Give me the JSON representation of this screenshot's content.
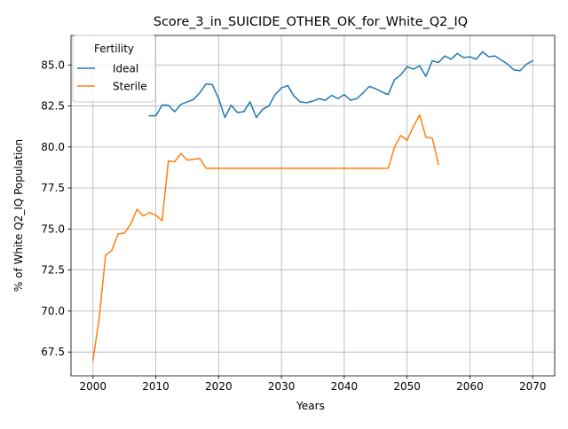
{
  "chart_data": {
    "type": "line",
    "title": "Score_3_in_SUICIDE_OTHER_OK_for_White_Q2_IQ",
    "xlabel": "Years",
    "ylabel": "% of White Q2_IQ Population",
    "xlim": [
      1996.5,
      2073.5
    ],
    "ylim": [
      66.05,
      86.8
    ],
    "xticks": [
      2000,
      2010,
      2020,
      2030,
      2040,
      2050,
      2060,
      2070
    ],
    "yticks": [
      67.5,
      70.0,
      72.5,
      75.0,
      77.5,
      80.0,
      82.5,
      85.0
    ],
    "ytick_labels": [
      "67.5",
      "70.0",
      "72.5",
      "75.0",
      "77.5",
      "80.0",
      "82.5",
      "85.0"
    ],
    "grid": true,
    "legend": {
      "title": "Fertility",
      "position": "top-left"
    },
    "series": [
      {
        "name": "Ideal",
        "color": "#1f77b4",
        "x": [
          2009,
          2010,
          2011,
          2012,
          2013,
          2014,
          2015,
          2016,
          2017,
          2018,
          2019,
          2020,
          2021,
          2022,
          2023,
          2024,
          2025,
          2026,
          2027,
          2028,
          2029,
          2030,
          2031,
          2032,
          2033,
          2034,
          2035,
          2036,
          2037,
          2038,
          2039,
          2040,
          2041,
          2042,
          2043,
          2044,
          2045,
          2046,
          2047,
          2048,
          2049,
          2050,
          2051,
          2052,
          2053,
          2054,
          2055,
          2056,
          2057,
          2058,
          2059,
          2060,
          2061,
          2062,
          2063,
          2064,
          2065,
          2066,
          2067,
          2068,
          2069,
          2070
        ],
        "y": [
          81.9,
          81.9,
          82.55,
          82.55,
          82.15,
          82.6,
          82.75,
          82.9,
          83.3,
          83.85,
          83.8,
          82.95,
          81.8,
          82.55,
          82.1,
          82.15,
          82.75,
          81.8,
          82.3,
          82.5,
          83.2,
          83.6,
          83.75,
          83.1,
          82.75,
          82.7,
          82.8,
          82.95,
          82.85,
          83.15,
          82.95,
          83.2,
          82.85,
          82.95,
          83.3,
          83.7,
          83.55,
          83.35,
          83.2,
          84.1,
          84.4,
          84.9,
          84.75,
          84.95,
          84.3,
          85.25,
          85.15,
          85.55,
          85.35,
          85.7,
          85.45,
          85.5,
          85.35,
          85.8,
          85.5,
          85.55,
          85.3,
          85.05,
          84.7,
          84.65,
          85.05,
          85.25
        ]
      },
      {
        "name": "Sterile",
        "color": "#ff7f0e",
        "x": [
          2000,
          2001,
          2002,
          2003,
          2004,
          2005,
          2006,
          2007,
          2008,
          2009,
          2010,
          2011,
          2012,
          2013,
          2014,
          2015,
          2016,
          2017,
          2018,
          2019,
          2020,
          2021,
          2022,
          2023,
          2024,
          2025,
          2026,
          2027,
          2028,
          2029,
          2030,
          2031,
          2032,
          2033,
          2034,
          2035,
          2036,
          2037,
          2038,
          2039,
          2040,
          2041,
          2042,
          2043,
          2044,
          2045,
          2046,
          2047,
          2048,
          2049,
          2050,
          2051,
          2052,
          2053,
          2054,
          2055
        ],
        "y": [
          67.0,
          69.6,
          73.4,
          73.7,
          74.7,
          74.75,
          75.3,
          76.2,
          75.8,
          76.0,
          75.85,
          75.5,
          79.15,
          79.1,
          79.6,
          79.2,
          79.25,
          79.3,
          78.7,
          78.7,
          78.7,
          78.7,
          78.7,
          78.7,
          78.7,
          78.7,
          78.7,
          78.7,
          78.7,
          78.7,
          78.7,
          78.7,
          78.7,
          78.7,
          78.7,
          78.7,
          78.7,
          78.7,
          78.7,
          78.7,
          78.7,
          78.7,
          78.7,
          78.7,
          78.7,
          78.7,
          78.7,
          78.7,
          80.0,
          80.7,
          80.4,
          81.25,
          81.95,
          80.6,
          80.55,
          78.95
        ]
      }
    ]
  }
}
